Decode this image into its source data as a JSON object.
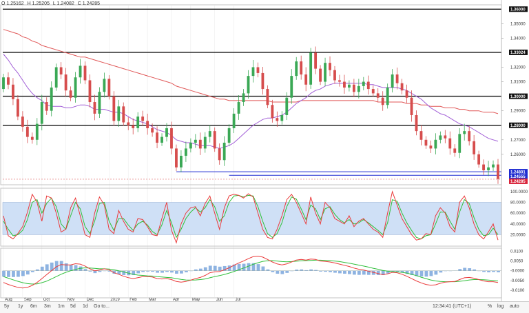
{
  "ohlc": {
    "open": "O 1.25162",
    "high": "H 1.25205",
    "low": "L 1.24082",
    "close": "C 1.24285"
  },
  "toolbar": {
    "timeframes": [
      "5y",
      "1y",
      "6m",
      "3m",
      "1m",
      "5d",
      "1d",
      "Go to..."
    ],
    "clock": "12:34:41 (UTC+1)",
    "percent": "%",
    "log": "log",
    "auto": "auto"
  },
  "colors": {
    "up": "#3aa855",
    "down": "#d64d4d",
    "ma_red": "#e05656",
    "ma_purple": "#a05cd6",
    "level": "#111111",
    "support": "#1e2bd0",
    "osc_fast": "#ea3b3b",
    "osc_slow": "#2fbf3a",
    "band": "#cfe0f6",
    "hist": "#7aa6dc"
  },
  "chart_data": {
    "type": "candlestick",
    "x_ticks": [
      "Aug",
      "Sep",
      "Oct",
      "Nov",
      "Dec",
      "2019",
      "Feb",
      "Mar",
      "Apr",
      "May",
      "Jun",
      "Jul"
    ],
    "price_axis": {
      "range": [
        1.2395,
        1.3625
      ],
      "ticks": [
        "1.36000",
        "1.35000",
        "1.34000",
        "1.33024",
        "1.32000",
        "1.31000",
        "1.30000",
        "1.29000",
        "1.28000",
        "1.27000",
        "1.26000",
        "1.24801",
        "1.24555",
        "1.24285"
      ]
    },
    "level_lines": [
      1.36,
      1.33024,
      1.3,
      1.28
    ],
    "highlighted_labels": [
      {
        "text": "1.36000",
        "value": 1.36,
        "kind": "level"
      },
      {
        "text": "1.33024",
        "value": 1.33024,
        "kind": "level"
      },
      {
        "text": "1.30000",
        "value": 1.3,
        "kind": "level"
      },
      {
        "text": "1.28000",
        "value": 1.28,
        "kind": "level"
      },
      {
        "text": "1.24801",
        "value": 1.24801,
        "kind": "support"
      },
      {
        "text": "1.24555",
        "value": 1.24555,
        "kind": "support"
      },
      {
        "text": "1.24285",
        "value": 1.24285,
        "kind": "last"
      }
    ],
    "support_lines": [
      {
        "value": 1.24801,
        "from_week": 36
      },
      {
        "value": 1.24555,
        "from_week": 47
      }
    ],
    "weekly_closes": [
      1.313,
      1.308,
      1.298,
      1.286,
      1.279,
      1.272,
      1.27,
      1.281,
      1.296,
      1.29,
      1.306,
      1.32,
      1.315,
      1.304,
      1.299,
      1.313,
      1.321,
      1.311,
      1.296,
      1.288,
      1.303,
      1.312,
      1.3,
      1.283,
      1.293,
      1.282,
      1.28,
      1.278,
      1.286,
      1.283,
      1.278,
      1.275,
      1.268,
      1.272,
      1.278,
      1.264,
      1.251,
      1.259,
      1.264,
      1.268,
      1.27,
      1.264,
      1.272,
      1.276,
      1.264,
      1.256,
      1.268,
      1.278,
      1.288,
      1.296,
      1.302,
      1.314,
      1.32,
      1.316,
      1.305,
      1.294,
      1.285,
      1.283,
      1.287,
      1.299,
      1.314,
      1.324,
      1.315,
      1.308,
      1.33,
      1.319,
      1.31,
      1.323,
      1.318,
      1.311,
      1.31,
      1.306,
      1.308,
      1.303,
      1.307,
      1.31,
      1.305,
      1.302,
      1.299,
      1.294,
      1.306,
      1.315,
      1.309,
      1.304,
      1.299,
      1.287,
      1.276,
      1.27,
      1.266,
      1.264,
      1.27,
      1.273,
      1.271,
      1.264,
      1.261,
      1.274,
      1.276,
      1.269,
      1.26,
      1.253,
      1.249,
      1.251,
      1.253,
      1.243
    ],
    "ma_fast": [
      1.329,
      1.325,
      1.32,
      1.316,
      1.311,
      1.306,
      1.302,
      1.299,
      1.297,
      1.294,
      1.293,
      1.293,
      1.293,
      1.292,
      1.292,
      1.293,
      1.294,
      1.294,
      1.293,
      1.291,
      1.291,
      1.291,
      1.29,
      1.289,
      1.289,
      1.288,
      1.286,
      1.284,
      1.283,
      1.282,
      1.281,
      1.279,
      1.277,
      1.276,
      1.275,
      1.273,
      1.27,
      1.269,
      1.268,
      1.268,
      1.267,
      1.266,
      1.266,
      1.266,
      1.265,
      1.264,
      1.265,
      1.266,
      1.268,
      1.271,
      1.274,
      1.277,
      1.28,
      1.282,
      1.284,
      1.285,
      1.285,
      1.286,
      1.287,
      1.289,
      1.292,
      1.295,
      1.297,
      1.299,
      1.302,
      1.304,
      1.305,
      1.307,
      1.308,
      1.309,
      1.309,
      1.309,
      1.309,
      1.309,
      1.309,
      1.309,
      1.308,
      1.308,
      1.307,
      1.306,
      1.306,
      1.306,
      1.306,
      1.305,
      1.304,
      1.302,
      1.3,
      1.298,
      1.295,
      1.292,
      1.29,
      1.288,
      1.287,
      1.285,
      1.283,
      1.281,
      1.28,
      1.279,
      1.277,
      1.275,
      1.273,
      1.271,
      1.27,
      1.269
    ],
    "ma_slow": [
      1.346,
      1.345,
      1.344,
      1.343,
      1.341,
      1.34,
      1.338,
      1.337,
      1.335,
      1.334,
      1.333,
      1.332,
      1.331,
      1.33,
      1.329,
      1.328,
      1.327,
      1.327,
      1.326,
      1.325,
      1.324,
      1.323,
      1.322,
      1.321,
      1.32,
      1.319,
      1.318,
      1.317,
      1.316,
      1.315,
      1.314,
      1.313,
      1.312,
      1.311,
      1.31,
      1.309,
      1.307,
      1.306,
      1.305,
      1.304,
      1.303,
      1.302,
      1.301,
      1.3,
      1.299,
      1.298,
      1.298,
      1.297,
      1.297,
      1.297,
      1.297,
      1.297,
      1.297,
      1.297,
      1.297,
      1.297,
      1.296,
      1.296,
      1.296,
      1.296,
      1.296,
      1.296,
      1.297,
      1.297,
      1.297,
      1.297,
      1.297,
      1.297,
      1.297,
      1.297,
      1.297,
      1.297,
      1.297,
      1.297,
      1.297,
      1.297,
      1.297,
      1.297,
      1.296,
      1.296,
      1.296,
      1.296,
      1.296,
      1.296,
      1.295,
      1.295,
      1.295,
      1.294,
      1.294,
      1.293,
      1.293,
      1.293,
      1.292,
      1.292,
      1.292,
      1.291,
      1.291,
      1.29,
      1.29,
      1.29,
      1.289,
      1.289,
      1.289,
      1.288
    ],
    "stochastic": {
      "ticks": [
        "100.0000",
        "80.0000",
        "60.0000",
        "40.0000",
        "20.0000"
      ],
      "range": [
        0,
        105
      ],
      "band": [
        20,
        80
      ],
      "fast": [
        55,
        18,
        12,
        22,
        35,
        62,
        95,
        80,
        45,
        92,
        88,
        60,
        25,
        30,
        70,
        88,
        55,
        20,
        15,
        60,
        90,
        75,
        30,
        22,
        65,
        45,
        30,
        25,
        50,
        48,
        35,
        20,
        18,
        50,
        80,
        28,
        5,
        40,
        60,
        70,
        72,
        55,
        78,
        92,
        60,
        30,
        70,
        92,
        95,
        93,
        88,
        96,
        90,
        60,
        30,
        15,
        12,
        30,
        55,
        85,
        95,
        80,
        60,
        40,
        90,
        60,
        40,
        80,
        70,
        50,
        45,
        40,
        55,
        35,
        45,
        50,
        40,
        30,
        25,
        15,
        60,
        100,
        75,
        50,
        35,
        20,
        10,
        12,
        22,
        20,
        55,
        70,
        60,
        35,
        25,
        80,
        92,
        70,
        40,
        20,
        12,
        25,
        40,
        10
      ],
      "slow": [
        45,
        30,
        18,
        20,
        28,
        48,
        80,
        85,
        60,
        78,
        88,
        72,
        40,
        30,
        55,
        80,
        68,
        35,
        22,
        45,
        78,
        80,
        45,
        28,
        50,
        50,
        38,
        28,
        40,
        45,
        38,
        26,
        20,
        38,
        65,
        42,
        15,
        30,
        50,
        62,
        70,
        62,
        70,
        85,
        72,
        45,
        55,
        80,
        92,
        93,
        90,
        93,
        92,
        72,
        45,
        22,
        15,
        22,
        42,
        72,
        90,
        86,
        68,
        48,
        75,
        68,
        48,
        68,
        72,
        58,
        48,
        42,
        48,
        40,
        42,
        48,
        42,
        35,
        28,
        20,
        42,
        85,
        82,
        60,
        42,
        28,
        15,
        12,
        18,
        20,
        40,
        62,
        62,
        45,
        30,
        62,
        85,
        78,
        52,
        30,
        18,
        20,
        32,
        20
      ]
    },
    "macd": {
      "ticks": [
        "0.0100",
        "0.0050",
        "-0.0000",
        "-0.0050",
        "-0.0100"
      ],
      "range": [
        -0.0135,
        0.0112
      ],
      "macd": [
        -0.006,
        -0.007,
        -0.0078,
        -0.0085,
        -0.0088,
        -0.0085,
        -0.0075,
        -0.006,
        -0.004,
        -0.002,
        0.0,
        0.002,
        0.0032,
        0.003,
        0.003,
        0.0036,
        0.0034,
        0.0024,
        0.001,
        0.0,
        0.0004,
        0.001,
        0.0005,
        -0.001,
        -0.0018,
        -0.0028,
        -0.0035,
        -0.004,
        -0.0035,
        -0.003,
        -0.003,
        -0.0032,
        -0.004,
        -0.0042,
        -0.004,
        -0.0045,
        -0.0055,
        -0.0058,
        -0.0055,
        -0.0048,
        -0.004,
        -0.0034,
        -0.0024,
        -0.001,
        -0.0005,
        -0.0004,
        0.0005,
        0.0015,
        0.0028,
        0.004,
        0.005,
        0.0062,
        0.0072,
        0.0075,
        0.007,
        0.0058,
        0.0045,
        0.0035,
        0.003,
        0.0035,
        0.0045,
        0.0055,
        0.0058,
        0.0055,
        0.006,
        0.0058,
        0.005,
        0.0048,
        0.0045,
        0.004,
        0.0034,
        0.0028,
        0.0022,
        0.0014,
        0.0008,
        0.0004,
        -0.0002,
        -0.0008,
        -0.0014,
        -0.002,
        -0.0016,
        -0.0008,
        -0.001,
        -0.0018,
        -0.0028,
        -0.004,
        -0.0052,
        -0.0062,
        -0.007,
        -0.0074,
        -0.0072,
        -0.0064,
        -0.0058,
        -0.0056,
        -0.0055,
        -0.0045,
        -0.0036,
        -0.0034,
        -0.0038,
        -0.0045,
        -0.0052,
        -0.0056,
        -0.0056,
        -0.006
      ],
      "signal": [
        -0.003,
        -0.0038,
        -0.0046,
        -0.0054,
        -0.0061,
        -0.0066,
        -0.0068,
        -0.0067,
        -0.0061,
        -0.0053,
        -0.0042,
        -0.003,
        -0.0018,
        -0.0008,
        0.0,
        0.0007,
        0.0012,
        0.0015,
        0.0014,
        0.0012,
        0.001,
        0.001,
        0.0009,
        0.0005,
        0.0,
        -0.0006,
        -0.0012,
        -0.0018,
        -0.0022,
        -0.0024,
        -0.0026,
        -0.0027,
        -0.003,
        -0.0032,
        -0.0034,
        -0.0036,
        -0.004,
        -0.0044,
        -0.0047,
        -0.0048,
        -0.0047,
        -0.0045,
        -0.0042,
        -0.0036,
        -0.003,
        -0.0025,
        -0.0019,
        -0.0012,
        -0.0004,
        0.0005,
        0.0014,
        0.0023,
        0.0033,
        0.0041,
        0.0048,
        0.0051,
        0.0052,
        0.005,
        0.0047,
        0.0046,
        0.0047,
        0.0049,
        0.0051,
        0.0052,
        0.0053,
        0.0054,
        0.0054,
        0.0053,
        0.0052,
        0.005,
        0.0047,
        0.0043,
        0.0039,
        0.0034,
        0.0029,
        0.0024,
        0.0019,
        0.0013,
        0.0008,
        0.0002,
        -0.0002,
        -0.0004,
        -0.0005,
        -0.0008,
        -0.0012,
        -0.0018,
        -0.0025,
        -0.0033,
        -0.004,
        -0.0047,
        -0.0052,
        -0.0055,
        -0.0056,
        -0.0056,
        -0.0056,
        -0.0054,
        -0.0051,
        -0.0047,
        -0.0045,
        -0.0045,
        -0.0046,
        -0.0048,
        -0.005,
        -0.0052
      ]
    }
  }
}
